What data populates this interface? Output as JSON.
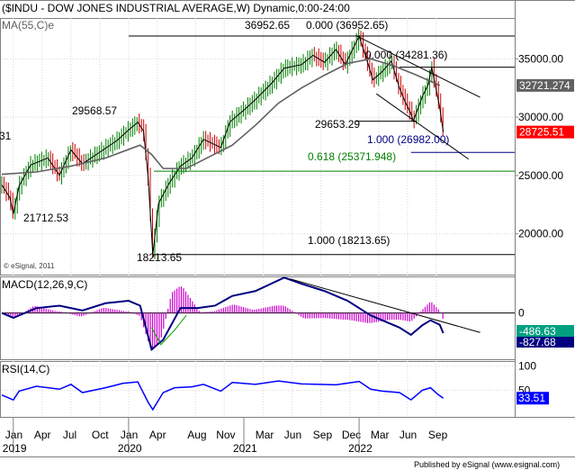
{
  "chart_data": [
    {
      "type": "line",
      "title": "($INDU - DOW JONES INDUSTRIAL AVERAGE,W) Dynamic,0:00-24:00",
      "overlay_label": "MA(55,C)e",
      "watermark": "© eSignal, 2011",
      "left_edge_label": "31",
      "ylim": [
        16500,
        38500
      ],
      "yticks": [
        "35000.00",
        "30000.00",
        "25000.00",
        "20000.00"
      ],
      "ytick_values": [
        35000,
        30000,
        25000,
        20000
      ],
      "price": [
        [
          2018.9,
          24200
        ],
        [
          2018.97,
          23100
        ],
        [
          2019.0,
          21712.53
        ],
        [
          2019.05,
          24100
        ],
        [
          2019.15,
          25900
        ],
        [
          2019.3,
          26500
        ],
        [
          2019.4,
          25000
        ],
        [
          2019.5,
          27200
        ],
        [
          2019.6,
          26000
        ],
        [
          2019.75,
          27000
        ],
        [
          2019.9,
          28000
        ],
        [
          2020.0,
          28900
        ],
        [
          2020.08,
          29568.57
        ],
        [
          2020.13,
          28800
        ],
        [
          2020.17,
          24800
        ],
        [
          2020.21,
          18213.65
        ],
        [
          2020.26,
          22600
        ],
        [
          2020.35,
          24300
        ],
        [
          2020.45,
          25800
        ],
        [
          2020.55,
          26500
        ],
        [
          2020.65,
          28100
        ],
        [
          2020.8,
          27400
        ],
        [
          2020.88,
          29600
        ],
        [
          2021.0,
          30600
        ],
        [
          2021.1,
          31500
        ],
        [
          2021.25,
          33000
        ],
        [
          2021.35,
          34200
        ],
        [
          2021.5,
          34500
        ],
        [
          2021.6,
          35300
        ],
        [
          2021.7,
          34700
        ],
        [
          2021.8,
          35800
        ],
        [
          2021.88,
          34500
        ],
        [
          2022.0,
          36952.65
        ],
        [
          2022.08,
          34500
        ],
        [
          2022.12,
          33200
        ],
        [
          2022.2,
          33900
        ],
        [
          2022.28,
          34800
        ],
        [
          2022.35,
          32500
        ],
        [
          2022.4,
          31300
        ],
        [
          2022.45,
          30300
        ],
        [
          2022.47,
          29653.29
        ],
        [
          2022.55,
          31800
        ],
        [
          2022.6,
          32800
        ],
        [
          2022.63,
          34281.36
        ],
        [
          2022.67,
          32300
        ],
        [
          2022.7,
          30800
        ],
        [
          2022.73,
          28725.51
        ]
      ],
      "ma55": [
        [
          2018.9,
          25100
        ],
        [
          2019.2,
          25300
        ],
        [
          2019.5,
          25800
        ],
        [
          2019.8,
          26500
        ],
        [
          2020.1,
          27600
        ],
        [
          2020.2,
          26800
        ],
        [
          2020.3,
          25600
        ],
        [
          2020.5,
          25600
        ],
        [
          2020.7,
          26600
        ],
        [
          2020.9,
          27600
        ],
        [
          2021.1,
          29300
        ],
        [
          2021.3,
          31200
        ],
        [
          2021.5,
          32500
        ],
        [
          2021.7,
          33600
        ],
        [
          2021.9,
          34600
        ],
        [
          2022.1,
          35000
        ],
        [
          2022.3,
          34400
        ],
        [
          2022.5,
          33600
        ],
        [
          2022.7,
          32721.274
        ]
      ],
      "current_price": {
        "value": 28725.51,
        "label": "28725.51",
        "color": "#ff0000"
      },
      "current_ma": {
        "value": 32721.274,
        "label": "32721.274",
        "color": "#606060"
      },
      "annotations": [
        {
          "text": "36952.65",
          "x": 2021.65,
          "y": 37400
        },
        {
          "text": "29568.57",
          "x": 2019.45,
          "y": 30500
        },
        {
          "text": "21712.53",
          "x": 2018.9,
          "y": 20800
        },
        {
          "text": "18213.65",
          "x": 2020.2,
          "y": 17050
        },
        {
          "text": "29653.29",
          "x": 2022.2,
          "y": 29100
        }
      ],
      "fib_levels": [
        {
          "text": "0.000 (36952.65)",
          "value": 36952.65,
          "from": 2020.0,
          "color": "#000000"
        },
        {
          "text": "0.000 (34281.36)",
          "value": 34281.36,
          "from": 2022.35,
          "color": "#000000"
        },
        {
          "text": "1.000 (26982.00)",
          "value": 26982.0,
          "from": 2022.45,
          "color": "#000080"
        },
        {
          "text": "0.618 (25371.948)",
          "value": 25371.948,
          "from": 2020.22,
          "color": "#008000"
        },
        {
          "text": "1.000 (18213.65)",
          "value": 18213.65,
          "from": 2020.22,
          "color": "#000000"
        }
      ],
      "trendlines": [
        {
          "from": [
            2021.97,
            37000
          ],
          "to": [
            2023.05,
            31700
          ]
        },
        {
          "from": [
            2022.15,
            32000
          ],
          "to": [
            2022.95,
            26400
          ]
        }
      ],
      "hline_29653": {
        "value": 29653.29,
        "from": 2021.97,
        "to": 2022.5
      }
    },
    {
      "type": "line",
      "title": "MACD(12,26,9,C)",
      "ylim": [
        -1900,
        1500
      ],
      "zero_label": "0",
      "series": [
        {
          "name": "MACD",
          "color": "#000080",
          "values": [
            [
              2018.9,
              0
            ],
            [
              2019.0,
              -200
            ],
            [
              2019.2,
              200
            ],
            [
              2019.4,
              300
            ],
            [
              2019.6,
              100
            ],
            [
              2019.8,
              400
            ],
            [
              2020.0,
              500
            ],
            [
              2020.1,
              300
            ],
            [
              2020.2,
              -1500
            ],
            [
              2020.3,
              -1100
            ],
            [
              2020.45,
              200
            ],
            [
              2020.6,
              200
            ],
            [
              2020.75,
              300
            ],
            [
              2020.9,
              700
            ],
            [
              2021.1,
              900
            ],
            [
              2021.35,
              1450
            ],
            [
              2021.5,
              1200
            ],
            [
              2021.7,
              900
            ],
            [
              2021.9,
              500
            ],
            [
              2022.1,
              -100
            ],
            [
              2022.2,
              -300
            ],
            [
              2022.35,
              -600
            ],
            [
              2022.45,
              -900
            ],
            [
              2022.55,
              -500
            ],
            [
              2022.62,
              -300
            ],
            [
              2022.7,
              -486.63
            ],
            [
              2022.73,
              -827.68
            ]
          ]
        },
        {
          "name": "Signal",
          "color": "#00a000",
          "values": [
            [
              2020.2,
              -600
            ],
            [
              2020.28,
              -1300
            ],
            [
              2020.4,
              -700
            ],
            [
              2020.5,
              -100
            ]
          ]
        }
      ],
      "labels": [
        {
          "text": "-486.63"
        },
        {
          "text": "-827.68"
        }
      ],
      "trendline": {
        "from": [
          2021.4,
          1400
        ],
        "to": [
          2023.05,
          -800
        ]
      }
    },
    {
      "type": "line",
      "title": "RSI(14,C)",
      "ylim": [
        -5,
        110
      ],
      "yticks": [
        "100",
        "50"
      ],
      "ytick_values": [
        100,
        50
      ],
      "series": [
        {
          "name": "RSI",
          "color": "#0000ff",
          "values": [
            [
              2018.9,
              40
            ],
            [
              2019.0,
              30
            ],
            [
              2019.05,
              48
            ],
            [
              2019.2,
              58
            ],
            [
              2019.4,
              52
            ],
            [
              2019.5,
              62
            ],
            [
              2019.6,
              45
            ],
            [
              2019.8,
              55
            ],
            [
              2019.95,
              64
            ],
            [
              2020.08,
              67
            ],
            [
              2020.17,
              25
            ],
            [
              2020.21,
              10
            ],
            [
              2020.3,
              45
            ],
            [
              2020.4,
              55
            ],
            [
              2020.55,
              57
            ],
            [
              2020.65,
              62
            ],
            [
              2020.8,
              48
            ],
            [
              2020.9,
              66
            ],
            [
              2021.1,
              62
            ],
            [
              2021.3,
              69
            ],
            [
              2021.5,
              63
            ],
            [
              2021.65,
              62
            ],
            [
              2021.8,
              61
            ],
            [
              2022.0,
              68
            ],
            [
              2022.1,
              52
            ],
            [
              2022.2,
              48
            ],
            [
              2022.35,
              45
            ],
            [
              2022.45,
              30
            ],
            [
              2022.55,
              50
            ],
            [
              2022.62,
              55
            ],
            [
              2022.68,
              42
            ],
            [
              2022.73,
              33.51
            ]
          ]
        }
      ],
      "current": {
        "value": 33.51,
        "label": "33.51"
      }
    }
  ],
  "x_axis": {
    "range": [
      2018.9,
      2023.35
    ],
    "months": [
      {
        "label": "Jan",
        "x": 2019.0
      },
      {
        "label": "Apr",
        "x": 2019.25
      },
      {
        "label": "Jul",
        "x": 2019.5
      },
      {
        "label": "Oct",
        "x": 2019.75
      },
      {
        "label": "Jan",
        "x": 2020.0
      },
      {
        "label": "Apr",
        "x": 2020.25
      },
      {
        "label": "Aug",
        "x": 2020.58
      },
      {
        "label": "Nov",
        "x": 2020.83
      },
      {
        "label": "Mar",
        "x": 2021.17
      },
      {
        "label": "Jun",
        "x": 2021.42
      },
      {
        "label": "Sep",
        "x": 2021.67
      },
      {
        "label": "Dec",
        "x": 2021.92
      },
      {
        "label": "Mar",
        "x": 2022.17
      },
      {
        "label": "Jun",
        "x": 2022.42
      },
      {
        "label": "Sep",
        "x": 2022.67
      }
    ],
    "years": [
      {
        "label": "2019",
        "x": 2019.0
      },
      {
        "label": "2020",
        "x": 2020.0
      },
      {
        "label": "2021",
        "x": 2021.0
      },
      {
        "label": "2022",
        "x": 2022.0
      }
    ]
  },
  "footer": "Published by eSignal (www.esignal.com)",
  "colors": {
    "price": "#000000",
    "price_bar_up": "#008000",
    "price_bar_down": "#cc0000",
    "ma": "#606060",
    "histogram": "#cc00cc",
    "grid": "#d8d8d8"
  }
}
